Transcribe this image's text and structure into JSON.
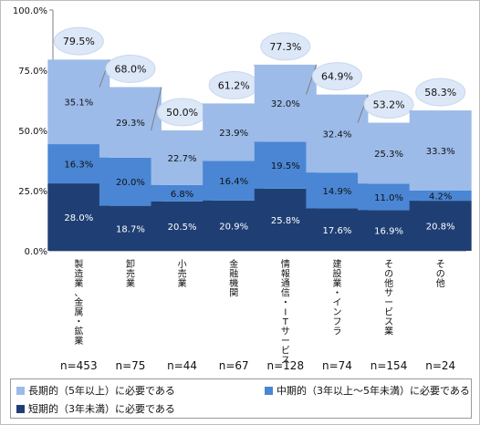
{
  "chart_data": {
    "type": "bar",
    "stacked": true,
    "categories": [
      "製造業、金属・鉱業",
      "卸売業",
      "小売業",
      "金融機関",
      "情報通信・ITサービス",
      "建設業・インフラ",
      "その他サービス業",
      "その他"
    ],
    "n_labels": [
      "n=453",
      "n=75",
      "n=44",
      "n=67",
      "n=128",
      "n=74",
      "n=154",
      "n=24"
    ],
    "series": [
      {
        "name": "短期的（3年未満）に必要である",
        "color": "#1f3f74",
        "values": [
          28.0,
          18.7,
          20.5,
          20.9,
          25.8,
          17.6,
          16.9,
          20.8
        ],
        "labels": [
          "28.0%",
          "18.7%",
          "20.5%",
          "20.9%",
          "25.8%",
          "17.6%",
          "16.9%",
          "20.8%"
        ]
      },
      {
        "name": "中期的（3年以上～5年未満）に必要である",
        "color": "#4a86d4",
        "values": [
          16.3,
          20.0,
          6.8,
          16.4,
          19.5,
          14.9,
          11.0,
          4.2
        ],
        "labels": [
          "16.3%",
          "20.0%",
          "6.8%",
          "16.4%",
          "19.5%",
          "14.9%",
          "11.0%",
          "4.2%"
        ]
      },
      {
        "name": "長期的（5年以上）に必要である",
        "color": "#9cbbe9",
        "values": [
          35.1,
          29.3,
          22.7,
          23.9,
          32.0,
          32.4,
          25.3,
          33.3
        ],
        "labels": [
          "35.1%",
          "29.3%",
          "22.7%",
          "23.9%",
          "32.0%",
          "32.4%",
          "25.3%",
          "33.3%"
        ]
      }
    ],
    "totals": [
      "79.5%",
      "68.0%",
      "50.0%",
      "61.2%",
      "77.3%",
      "64.9%",
      "53.2%",
      "58.3%"
    ],
    "total_values": [
      79.5,
      68.0,
      50.0,
      61.2,
      77.3,
      64.9,
      53.2,
      58.3
    ],
    "yticks": [
      "0.0%",
      "25.0%",
      "50.0%",
      "75.0%",
      "100.0%"
    ],
    "ytick_values": [
      0,
      25,
      50,
      75,
      100
    ],
    "ylim": [
      0,
      100
    ],
    "grid": false,
    "legend_position": "bottom"
  },
  "legend": {
    "long": "長期的（5年以上）に必要である",
    "mid": "中期的（3年以上～5年未満）に必要である",
    "short": "短期的（3年未満）に必要である"
  }
}
